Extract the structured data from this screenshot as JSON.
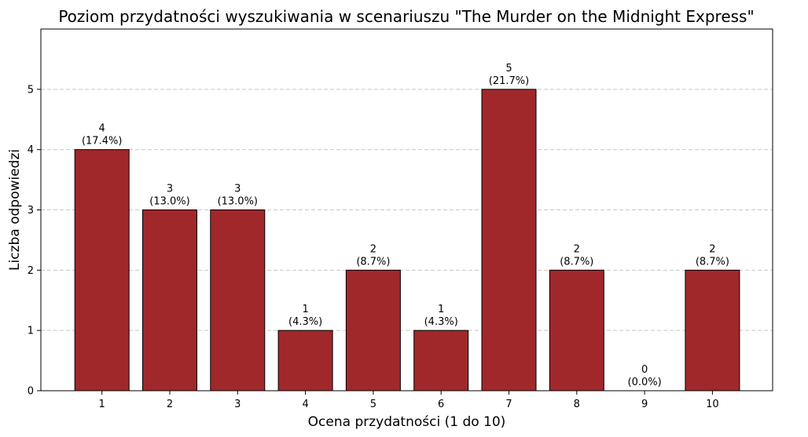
{
  "chart_data": {
    "type": "bar",
    "title": "Poziom przydatności wyszukiwania w scenariuszu \"The Murder on the Midnight Express\"",
    "xlabel": "Ocena przydatności (1 do 10)",
    "ylabel": "Liczba odpowiedzi",
    "categories": [
      "1",
      "2",
      "3",
      "4",
      "5",
      "6",
      "7",
      "8",
      "9",
      "10"
    ],
    "values": [
      4,
      3,
      3,
      1,
      2,
      1,
      5,
      2,
      0,
      2
    ],
    "value_labels": [
      "4",
      "3",
      "3",
      "1",
      "2",
      "1",
      "5",
      "2",
      "0",
      "2"
    ],
    "percent_labels": [
      "(17.4%)",
      "(13.0%)",
      "(13.0%)",
      "(4.3%)",
      "(8.7%)",
      "(4.3%)",
      "(21.7%)",
      "(8.7%)",
      "(0.0%)",
      "(8.7%)"
    ],
    "ylim": [
      0,
      6
    ],
    "yticks": [
      "0",
      "1",
      "2",
      "3",
      "4",
      "5"
    ],
    "grid": "horizontal dashed",
    "colors": {
      "bar": "#a0282a",
      "bar_edge": "#000000",
      "grid": "#c8c8c8"
    }
  }
}
